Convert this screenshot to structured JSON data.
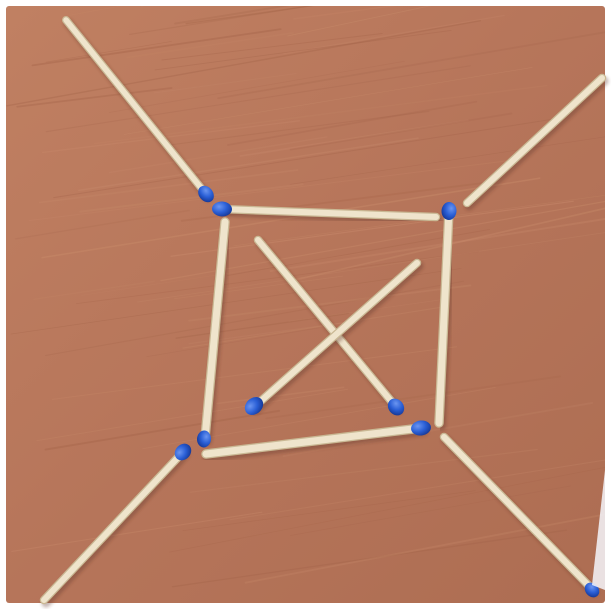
{
  "scene": {
    "subject": "matchstick-puzzle",
    "colors": {
      "table": "#b8785a",
      "table_dark": "#a4654a",
      "table_light": "#c98c6c",
      "stick": "#efe4cc",
      "stick_edge": "#c9b894",
      "head": "#2a5fd6",
      "head_dark": "#173a9a",
      "head_light": "#6b95f0"
    },
    "matches": [
      {
        "id": "outer-top-left"
      },
      {
        "id": "square-top"
      },
      {
        "id": "outer-top-right"
      },
      {
        "id": "square-left"
      },
      {
        "id": "square-right"
      },
      {
        "id": "cross-a"
      },
      {
        "id": "cross-b"
      },
      {
        "id": "square-bottom"
      },
      {
        "id": "outer-bottom-left"
      },
      {
        "id": "outer-bottom-right"
      }
    ]
  }
}
